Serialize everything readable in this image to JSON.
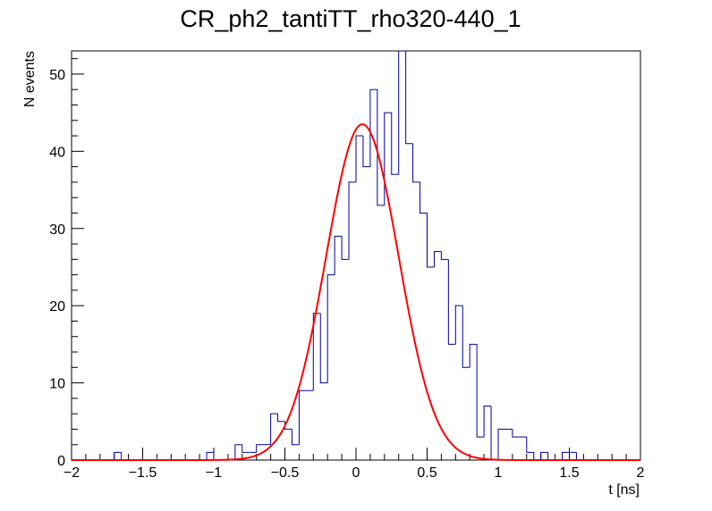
{
  "chart_data": {
    "type": "histogram",
    "title": "CR_ph2_tantiTT_rho320-440_1",
    "xlabel": "t [ns]",
    "ylabel": "N events",
    "xlim": [
      -2,
      2
    ],
    "ylim": [
      0,
      53
    ],
    "bin_width": 0.05,
    "x_ticks": [
      -2,
      -1.5,
      -1,
      -0.5,
      0,
      0.5,
      1,
      1.5,
      2
    ],
    "x_tick_labels": [
      "−2",
      "−1.5",
      "−1",
      "−0.5",
      "0",
      "0.5",
      "1",
      "1.5",
      "2"
    ],
    "y_ticks": [
      0,
      10,
      20,
      30,
      40,
      50
    ],
    "y_tick_labels": [
      "0",
      "10",
      "20",
      "30",
      "40",
      "50"
    ],
    "bins": [
      {
        "x": -1.7,
        "y": 1
      },
      {
        "x": -1.05,
        "y": 1
      },
      {
        "x": -0.85,
        "y": 2
      },
      {
        "x": -0.8,
        "y": 1
      },
      {
        "x": -0.75,
        "y": 1
      },
      {
        "x": -0.7,
        "y": 2
      },
      {
        "x": -0.65,
        "y": 2
      },
      {
        "x": -0.6,
        "y": 6
      },
      {
        "x": -0.55,
        "y": 5
      },
      {
        "x": -0.5,
        "y": 4
      },
      {
        "x": -0.45,
        "y": 2
      },
      {
        "x": -0.4,
        "y": 9
      },
      {
        "x": -0.35,
        "y": 9
      },
      {
        "x": -0.3,
        "y": 19
      },
      {
        "x": -0.25,
        "y": 10
      },
      {
        "x": -0.2,
        "y": 24
      },
      {
        "x": -0.15,
        "y": 29
      },
      {
        "x": -0.1,
        "y": 26
      },
      {
        "x": -0.05,
        "y": 36
      },
      {
        "x": 0.0,
        "y": 42
      },
      {
        "x": 0.05,
        "y": 38
      },
      {
        "x": 0.1,
        "y": 48
      },
      {
        "x": 0.15,
        "y": 33
      },
      {
        "x": 0.2,
        "y": 45
      },
      {
        "x": 0.25,
        "y": 37
      },
      {
        "x": 0.3,
        "y": 53
      },
      {
        "x": 0.35,
        "y": 41
      },
      {
        "x": 0.4,
        "y": 36
      },
      {
        "x": 0.45,
        "y": 32
      },
      {
        "x": 0.5,
        "y": 25
      },
      {
        "x": 0.55,
        "y": 27
      },
      {
        "x": 0.6,
        "y": 26
      },
      {
        "x": 0.65,
        "y": 15
      },
      {
        "x": 0.7,
        "y": 20
      },
      {
        "x": 0.75,
        "y": 12
      },
      {
        "x": 0.8,
        "y": 15
      },
      {
        "x": 0.85,
        "y": 3
      },
      {
        "x": 0.9,
        "y": 7
      },
      {
        "x": 1.0,
        "y": 4
      },
      {
        "x": 1.05,
        "y": 4
      },
      {
        "x": 1.1,
        "y": 3
      },
      {
        "x": 1.15,
        "y": 3
      },
      {
        "x": 1.2,
        "y": 1
      },
      {
        "x": 1.3,
        "y": 1
      },
      {
        "x": 1.45,
        "y": 1
      },
      {
        "x": 1.5,
        "y": 1
      }
    ],
    "fit": {
      "type": "gaussian",
      "amplitude": 43.5,
      "mean": 0.045,
      "sigma": 0.255,
      "color": "#ff0000"
    },
    "histogram_color": "#000099",
    "grid": false,
    "legend": "none"
  }
}
